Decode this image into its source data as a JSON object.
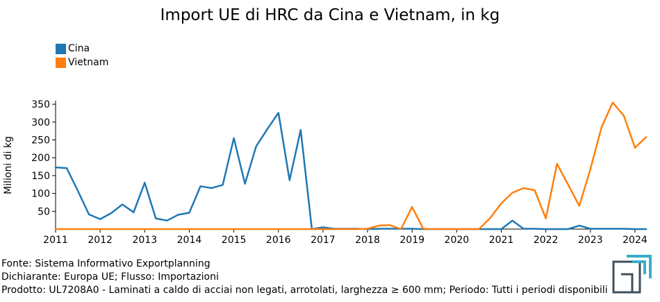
{
  "page_title": "Import UE di HRC da Cina e Vietnam, in kg",
  "colors": {
    "cina": "#1f77b4",
    "vietnam": "#ff7f0e"
  },
  "footer": {
    "fonte": "Fonte: Sistema Informativo Exportplanning",
    "dichiarante": "Dichiarante: Europa UE; Flusso: Importazioni",
    "prodotto": "Prodotto: UL7208A0 - Laminati a caldo di acciai non legati, arrotolati, larghezza ≥ 600 mm; Periodo: Tutti i periodi disponibili"
  },
  "chart_data": {
    "type": "line",
    "title": "Import UE di HRC da Cina e Vietnam, in kg",
    "xlabel": "",
    "ylabel": "Milioni di kg",
    "xlim": [
      2011,
      2024.25
    ],
    "ylim": [
      0,
      360
    ],
    "x_ticks": [
      2011,
      2012,
      2013,
      2014,
      2015,
      2016,
      2017,
      2018,
      2019,
      2020,
      2021,
      2022,
      2023,
      2024
    ],
    "y_ticks": [
      50,
      100,
      150,
      200,
      250,
      300,
      350
    ],
    "legend_position": "top-left",
    "grid": false,
    "x": [
      2011,
      2011.25,
      2011.5,
      2011.75,
      2012,
      2012.25,
      2012.5,
      2012.75,
      2013,
      2013.25,
      2013.5,
      2013.75,
      2014,
      2014.25,
      2014.5,
      2014.75,
      2015,
      2015.25,
      2015.5,
      2015.75,
      2016,
      2016.25,
      2016.5,
      2016.75,
      2017,
      2017.25,
      2017.5,
      2017.75,
      2018,
      2018.25,
      2018.5,
      2018.75,
      2019,
      2019.25,
      2019.5,
      2019.75,
      2020,
      2020.25,
      2020.5,
      2020.75,
      2021,
      2021.25,
      2021.5,
      2021.75,
      2022,
      2022.25,
      2022.5,
      2022.75,
      2023,
      2023.25,
      2023.5,
      2023.75,
      2024,
      2024.25
    ],
    "series": [
      {
        "name": "Cina",
        "values": [
          173,
          171,
          107,
          41,
          28,
          45,
          69,
          47,
          130,
          30,
          24,
          40,
          46,
          120,
          115,
          124,
          255,
          127,
          232,
          280,
          326,
          137,
          278,
          0,
          5,
          1,
          1,
          1,
          0,
          1,
          1,
          1,
          1,
          0,
          0,
          0,
          0,
          0,
          0,
          0,
          0,
          24,
          1,
          1,
          0,
          0,
          0,
          10,
          1,
          1,
          1,
          1,
          0,
          0
        ]
      },
      {
        "name": "Vietnam",
        "values": [
          0,
          0,
          0,
          0,
          0,
          0,
          0,
          0,
          0,
          0,
          0,
          0,
          0,
          0,
          0,
          0,
          0,
          0,
          0,
          0,
          0,
          0,
          0,
          0,
          0,
          0,
          0,
          0,
          1,
          10,
          11,
          0,
          62,
          1,
          0,
          0,
          0,
          0,
          0,
          31,
          72,
          102,
          115,
          109,
          30,
          183,
          125,
          65,
          168,
          285,
          355,
          318,
          228,
          258
        ]
      }
    ]
  }
}
